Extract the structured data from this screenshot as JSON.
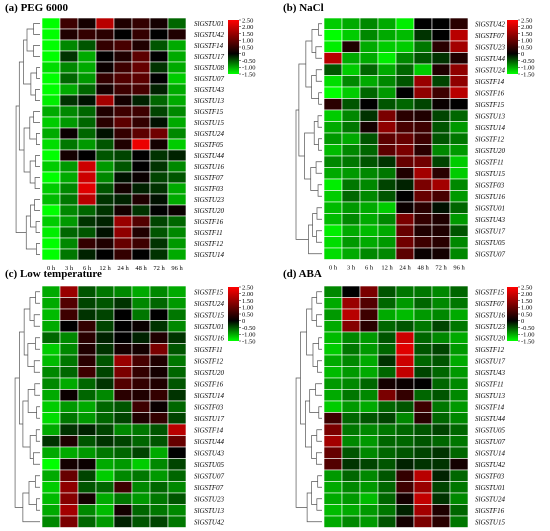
{
  "colors": {
    "low": "#00ff00",
    "mid": "#000000",
    "high": "#ff0000",
    "grid": "#ffffff",
    "dendrogram": "#555555"
  },
  "chart_data": [
    {
      "type": "heatmap",
      "title": "(a) PEG 6000",
      "x": [
        "0 h",
        "3 h",
        "6 h",
        "12 h",
        "24 h",
        "48 h",
        "72 h",
        "96 h"
      ],
      "colorbar_ticks": [
        "2.50",
        "2.00",
        "1.50",
        "1.00",
        "0.50",
        "0",
        "-0.50",
        "-1.00",
        "-1.50"
      ],
      "rows": [
        "SlGSTU01",
        "SlGSTU42",
        "SlGSTF14",
        "SlGSTU17",
        "SlGSTU08",
        "SlGSTU07",
        "SlGSTU43",
        "SlGSTU13",
        "SlGSTF15",
        "SlGSTU15",
        "SlGSTU24",
        "SlGSTF05",
        "SlGSTU44",
        "SlGSTU16",
        "SlGSTF07",
        "SlGSTF03",
        "SlGSTU23",
        "SlGSTU20",
        "SlGSTF16",
        "SlGSTF11",
        "SlGSTF12",
        "SlGSTU14"
      ],
      "values": [
        [
          -1.5,
          0.6,
          0.2,
          1.8,
          0.3,
          0.5,
          0.2,
          -0.6
        ],
        [
          -1.5,
          0.3,
          0.5,
          0.4,
          0.0,
          0.5,
          0.0,
          0.3
        ],
        [
          -1.5,
          -0.8,
          -0.5,
          0.5,
          0.7,
          0.3,
          -0.5,
          -1.0
        ],
        [
          -1.5,
          -0.3,
          -1.0,
          0.0,
          0.3,
          0.9,
          0.0,
          -1.0
        ],
        [
          -1.3,
          -0.8,
          -1.0,
          0.1,
          0.6,
          1.0,
          -0.3,
          -1.0
        ],
        [
          -1.5,
          -0.6,
          -0.9,
          0.5,
          0.8,
          0.9,
          0.0,
          -1.2
        ],
        [
          -1.5,
          -1.0,
          -0.6,
          0.2,
          0.6,
          0.7,
          -0.2,
          -1.0
        ],
        [
          -1.4,
          -0.3,
          -0.1,
          1.6,
          0.2,
          -0.2,
          -0.6,
          -1.0
        ],
        [
          -1.0,
          -0.8,
          -0.6,
          0.3,
          0.6,
          0.6,
          -0.4,
          -0.8
        ],
        [
          -1.2,
          -0.9,
          -0.6,
          0.4,
          0.9,
          0.5,
          -0.1,
          -1.0
        ],
        [
          -1.0,
          0.1,
          -0.6,
          -0.1,
          0.5,
          0.9,
          1.1,
          -0.8
        ],
        [
          -1.3,
          -0.7,
          -0.9,
          -0.5,
          0.3,
          2.3,
          0.2,
          -1.2
        ],
        [
          -1.5,
          0.2,
          0.0,
          -0.5,
          -0.4,
          0.0,
          -0.3,
          -0.2
        ],
        [
          -1.2,
          -0.9,
          2.0,
          -0.9,
          -0.5,
          0.0,
          -0.3,
          -0.8
        ],
        [
          -1.5,
          -1.0,
          2.0,
          -0.8,
          -0.1,
          0.1,
          -0.4,
          -0.5
        ],
        [
          -1.2,
          -0.8,
          2.2,
          -0.5,
          0.2,
          -0.2,
          -0.3,
          -1.0
        ],
        [
          -1.1,
          -0.7,
          1.8,
          -0.3,
          -0.2,
          0.3,
          -0.1,
          -1.0
        ],
        [
          -1.5,
          -0.8,
          -0.6,
          -0.3,
          0.2,
          -0.3,
          0.0,
          0.1
        ],
        [
          -1.2,
          -0.9,
          -0.3,
          -0.2,
          1.5,
          0.8,
          -0.4,
          -0.6
        ],
        [
          -1.4,
          -0.6,
          -0.5,
          -0.1,
          1.4,
          0.3,
          -0.5,
          -0.8
        ],
        [
          -1.5,
          -0.8,
          0.5,
          0.3,
          1.0,
          0.6,
          -0.3,
          -0.9
        ],
        [
          -1.5,
          -0.7,
          -0.2,
          0.0,
          0.5,
          0.0,
          -0.3,
          -1.0
        ]
      ]
    },
    {
      "type": "heatmap",
      "title": "(b) NaCl",
      "x": [
        "0 h",
        "3 h",
        "6 h",
        "12 h",
        "24 h",
        "48 h",
        "72 h",
        "96 h"
      ],
      "colorbar_ticks": [
        "2.50",
        "2.00",
        "1.50",
        "1.00",
        "0.50",
        "0",
        "-0.50",
        "-1.00",
        "-1.50"
      ],
      "rows": [
        "SlGSTU42",
        "SlGSTF07",
        "SlGSTU23",
        "SlGSTU44",
        "SlGSTU24",
        "SlGSTF14",
        "SlGSTF16",
        "SlGSTF15",
        "SlGSTU13",
        "SlGSTU14",
        "SlGSTF12",
        "SlGSTU20",
        "SlGSTF11",
        "SlGSTU15",
        "SlGSTF03",
        "SlGSTU16",
        "SlGSTU01",
        "SlGSTU43",
        "SlGSTU17",
        "SlGSTU05",
        "SlGSTU07"
      ],
      "values": [
        [
          -1.2,
          -1.0,
          -0.8,
          -1.0,
          -1.4,
          0.0,
          0.0,
          0.4
        ],
        [
          -1.5,
          -1.2,
          -0.8,
          -1.0,
          -1.1,
          -0.3,
          0.0,
          1.8
        ],
        [
          -1.4,
          0.3,
          -1.0,
          -1.2,
          -1.2,
          -0.7,
          0.4,
          1.6
        ],
        [
          1.8,
          -1.0,
          -1.0,
          -1.4,
          -0.8,
          -0.5,
          -0.3,
          0.3
        ],
        [
          -0.5,
          -1.2,
          -0.6,
          -1.0,
          -0.6,
          -1.2,
          0.3,
          1.4
        ],
        [
          -1.3,
          -0.8,
          -1.0,
          -0.8,
          -0.5,
          1.5,
          -0.4,
          1.4
        ],
        [
          -1.5,
          -1.2,
          -0.6,
          -0.9,
          0.0,
          1.4,
          0.6,
          1.8
        ],
        [
          0.4,
          -0.5,
          0.0,
          -0.5,
          -0.6,
          -0.4,
          0.1,
          0.0
        ],
        [
          -1.2,
          -0.8,
          -0.3,
          1.2,
          0.4,
          0.3,
          -0.4,
          -0.6
        ],
        [
          -1.0,
          -0.7,
          0.2,
          1.4,
          0.7,
          0.6,
          -0.5,
          -0.9
        ],
        [
          -0.9,
          -1.0,
          -0.5,
          0.9,
          1.0,
          0.6,
          -0.5,
          -0.7
        ],
        [
          -1.1,
          -0.8,
          -0.6,
          0.9,
          1.2,
          0.4,
          -0.8,
          -0.9
        ],
        [
          -0.8,
          -0.7,
          -0.5,
          -0.3,
          1.0,
          1.1,
          -0.4,
          -1.2
        ],
        [
          -1.0,
          -0.9,
          -0.8,
          -0.7,
          0.3,
          1.6,
          0.4,
          -1.2
        ],
        [
          -1.4,
          -0.7,
          -0.8,
          -0.4,
          -0.2,
          1.2,
          1.6,
          -0.8
        ],
        [
          -1.2,
          -0.6,
          -0.8,
          -0.5,
          0.0,
          1.0,
          0.7,
          -0.9
        ],
        [
          -1.1,
          -0.9,
          -1.0,
          -1.2,
          0.1,
          0.4,
          -0.1,
          -0.6
        ],
        [
          -1.1,
          -0.8,
          -1.0,
          -0.8,
          1.2,
          0.5,
          0.3,
          -0.9
        ],
        [
          -1.4,
          -1.0,
          -1.1,
          -1.0,
          1.0,
          0.3,
          0.3,
          -0.5
        ],
        [
          -1.3,
          -0.9,
          -1.0,
          -0.9,
          1.1,
          0.6,
          0.4,
          -0.8
        ],
        [
          -1.3,
          -1.0,
          -0.8,
          -0.8,
          0.9,
          0.1,
          0.2,
          -0.8
        ]
      ]
    },
    {
      "type": "heatmap",
      "title": "(c) Low temperature",
      "x": [
        "0 h",
        "3 h",
        "6 h",
        "12 h",
        "24 h",
        "48 h",
        "72 h",
        "96 h"
      ],
      "colorbar_ticks": [
        "2.50",
        "2.00",
        "1.50",
        "1.00",
        "0.50",
        "0",
        "-0.50",
        "-1.00",
        "-1.50"
      ],
      "rows": [
        "SlGSTF15",
        "SlGSTU24",
        "SlGSTU15",
        "SlGSTU01",
        "SlGSTU16",
        "SlGSTF11",
        "SlGSTF12",
        "SlGSTU20",
        "SlGSTF16",
        "SlGSTU14",
        "SlGSTF03",
        "SlGSTU17",
        "SlGSTF14",
        "SlGSTU44",
        "SlGSTU43",
        "SlGSTU05",
        "SlGSTU07",
        "SlGSTF07",
        "SlGSTU23",
        "SlGSTU13",
        "SlGSTU42"
      ],
      "values": [
        [
          -1.0,
          1.5,
          -0.5,
          -0.7,
          -0.8,
          -1.0,
          -0.8,
          -1.0
        ],
        [
          -1.0,
          0.8,
          -0.4,
          -0.5,
          -0.3,
          -0.8,
          -0.6,
          -0.9
        ],
        [
          -1.1,
          0.6,
          -0.3,
          -0.4,
          0.0,
          -0.7,
          0.0,
          -0.7
        ],
        [
          -1.0,
          0.0,
          0.5,
          -0.4,
          0.0,
          0.1,
          -0.3,
          -0.8
        ],
        [
          -0.6,
          -0.8,
          0.4,
          -0.2,
          0.0,
          -0.2,
          0.3,
          -0.3
        ],
        [
          -1.2,
          -0.8,
          0.3,
          -0.3,
          0.2,
          0.2,
          1.2,
          -0.5
        ],
        [
          -1.1,
          -0.7,
          0.4,
          -0.5,
          1.5,
          0.7,
          0.3,
          -0.7
        ],
        [
          -0.8,
          -0.6,
          0.6,
          -0.4,
          1.2,
          0.5,
          0.2,
          -0.6
        ],
        [
          -0.8,
          -1.0,
          -0.6,
          -0.3,
          0.8,
          0.5,
          0.3,
          -0.5
        ],
        [
          -1.0,
          0.1,
          -0.6,
          -0.8,
          0.4,
          0.3,
          0.5,
          -0.3
        ],
        [
          -1.2,
          -0.9,
          -1.0,
          -0.6,
          -0.5,
          0.6,
          0.1,
          -0.6
        ],
        [
          -1.3,
          -0.7,
          -0.9,
          -0.6,
          -0.4,
          0.3,
          0.5,
          -0.4
        ],
        [
          -1.0,
          -0.3,
          -0.2,
          -0.4,
          -0.8,
          -0.7,
          -0.5,
          1.8
        ],
        [
          -0.3,
          0.3,
          -0.5,
          -0.3,
          -0.4,
          -0.6,
          -0.5,
          1.0
        ],
        [
          -1.0,
          -1.0,
          -0.9,
          -0.7,
          -0.6,
          -0.4,
          -1.0,
          0.0
        ],
        [
          -1.5,
          0.2,
          0.1,
          -1.0,
          -0.9,
          -1.2,
          -0.8,
          -0.4
        ],
        [
          -1.0,
          1.0,
          -0.4,
          -1.2,
          -0.8,
          -0.7,
          -0.9,
          -0.6
        ],
        [
          -1.2,
          1.4,
          -0.5,
          -0.6,
          0.6,
          -0.8,
          -0.6,
          -0.8
        ],
        [
          -1.1,
          1.3,
          0.2,
          -1.0,
          -0.7,
          -0.9,
          -0.7,
          -0.5
        ],
        [
          -1.0,
          1.6,
          -0.8,
          -1.1,
          0.2,
          -0.6,
          -0.7,
          -0.8
        ],
        [
          -0.8,
          1.2,
          -0.6,
          -0.9,
          -0.2,
          -0.5,
          -0.4,
          -0.7
        ]
      ]
    },
    {
      "type": "heatmap",
      "title": "(d) ABA",
      "x": [
        "0 h",
        "3 h",
        "6 h",
        "12 h",
        "24 h",
        "48 h",
        "72 h",
        "96 h"
      ],
      "colorbar_ticks": [
        "2.50",
        "2.00",
        "1.50",
        "1.00",
        "0.50",
        "0",
        "-0.50",
        "-1.00",
        "-1.50"
      ],
      "rows": [
        "SlGSTF15",
        "SlGSTF07",
        "SlGSTU16",
        "SlGSTU23",
        "SlGSTU20",
        "SlGSTF12",
        "SlGSTU17",
        "SlGSTU43",
        "SlGSTF11",
        "SlGSTU13",
        "SlGSTF14",
        "SlGSTU44",
        "SlGSTU05",
        "SlGSTU07",
        "SlGSTU14",
        "SlGSTU42",
        "SlGSTF03",
        "SlGSTU01",
        "SlGSTU24",
        "SlGSTF16",
        "SlGSTU15"
      ],
      "values": [
        [
          -0.8,
          0.0,
          1.2,
          -0.5,
          -0.7,
          -0.7,
          -0.8,
          -0.6
        ],
        [
          -1.0,
          1.5,
          0.8,
          -0.6,
          -0.9,
          -0.6,
          -0.8,
          -0.7
        ],
        [
          -0.9,
          1.8,
          0.6,
          -1.0,
          -1.1,
          -0.9,
          -0.8,
          -1.0
        ],
        [
          -1.0,
          1.3,
          0.4,
          -0.6,
          -0.5,
          -0.7,
          -0.4,
          -0.7
        ],
        [
          -1.1,
          -0.8,
          -0.9,
          -0.5,
          2.0,
          -0.6,
          -0.8,
          -1.0
        ],
        [
          -1.2,
          -0.7,
          -0.9,
          -0.6,
          2.2,
          -0.5,
          -0.4,
          -0.9
        ],
        [
          -1.0,
          -0.8,
          -1.0,
          -0.3,
          2.0,
          -0.6,
          -0.5,
          -1.0
        ],
        [
          -1.1,
          -0.9,
          -1.0,
          -0.6,
          1.9,
          -0.4,
          -0.6,
          -0.9
        ],
        [
          -0.9,
          -0.8,
          -0.6,
          0.2,
          0.1,
          0.0,
          -0.6,
          -0.8
        ],
        [
          -1.0,
          -0.7,
          -0.8,
          1.2,
          0.5,
          -0.6,
          -0.5,
          -0.8
        ],
        [
          -1.2,
          -0.9,
          -1.0,
          -0.6,
          -0.5,
          0.6,
          -0.7,
          -0.9
        ],
        [
          0.6,
          -0.6,
          -0.5,
          -0.4,
          -0.8,
          0.4,
          -0.6,
          -0.8
        ],
        [
          1.2,
          -0.7,
          -0.8,
          -0.7,
          -0.6,
          -0.5,
          -0.4,
          -0.6
        ],
        [
          1.6,
          -0.8,
          -0.9,
          -0.6,
          -0.6,
          -0.5,
          -0.6,
          -0.7
        ],
        [
          1.0,
          -0.5,
          -0.8,
          -0.6,
          -0.5,
          -0.4,
          -0.3,
          -0.6
        ],
        [
          0.8,
          -0.3,
          -0.4,
          -0.5,
          -0.2,
          -0.3,
          -0.3,
          0.2
        ],
        [
          -0.9,
          -0.6,
          -0.8,
          -0.5,
          0.5,
          1.8,
          -0.2,
          -0.6
        ],
        [
          -1.0,
          -0.8,
          -0.9,
          -0.6,
          0.6,
          1.5,
          -0.4,
          -0.7
        ],
        [
          -1.0,
          -0.9,
          -1.1,
          -0.6,
          0.2,
          1.9,
          -0.3,
          -0.8
        ],
        [
          -1.1,
          -1.0,
          -0.9,
          -0.7,
          -0.2,
          1.6,
          0.3,
          -0.6
        ],
        [
          -1.0,
          -0.8,
          -0.9,
          -0.5,
          0.2,
          1.2,
          0.4,
          -0.7
        ]
      ]
    }
  ]
}
